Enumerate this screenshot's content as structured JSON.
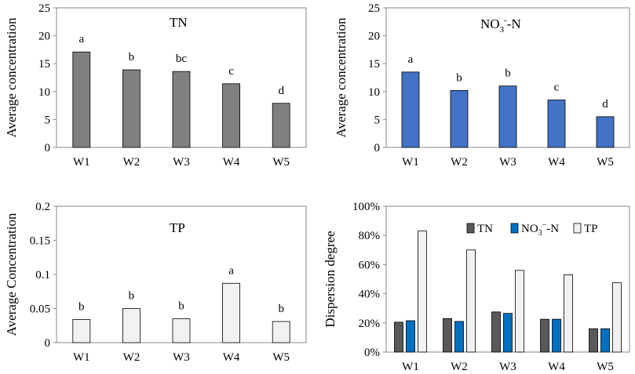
{
  "chart_data": [
    {
      "type": "bar",
      "title": "TN",
      "ylabel": "Average concentration",
      "xlabel": "",
      "categories": [
        "W1",
        "W2",
        "W3",
        "W4",
        "W5"
      ],
      "values": [
        17.1,
        13.9,
        13.6,
        11.4,
        7.9
      ],
      "significance": [
        "a",
        "b",
        "bc",
        "c",
        "d"
      ],
      "ylim": [
        0,
        25
      ],
      "yticks": [
        "0",
        "5",
        "10",
        "15",
        "20",
        "25"
      ],
      "bar_color": "#808080"
    },
    {
      "type": "bar",
      "title": "NO3--N",
      "title_main": "NO",
      "title_sub": "3",
      "title_sup": "-",
      "title_end": "-N",
      "ylabel": "Average concentration",
      "xlabel": "",
      "categories": [
        "W1",
        "W2",
        "W3",
        "W4",
        "W5"
      ],
      "values": [
        13.5,
        10.2,
        11.0,
        8.5,
        5.5
      ],
      "significance": [
        "a",
        "b",
        "b",
        "c",
        "d"
      ],
      "ylim": [
        0,
        25
      ],
      "yticks": [
        "0",
        "5",
        "10",
        "15",
        "20",
        "25"
      ],
      "bar_color": "#4472C4"
    },
    {
      "type": "bar",
      "title": "TP",
      "ylabel": "Average Concentration",
      "xlabel": "",
      "categories": [
        "W1",
        "W2",
        "W3",
        "W4",
        "W5"
      ],
      "values": [
        0.034,
        0.05,
        0.035,
        0.087,
        0.031
      ],
      "significance": [
        "b",
        "b",
        "b",
        "a",
        "b"
      ],
      "ylim": [
        0,
        0.2
      ],
      "yticks": [
        "0",
        "0.05",
        "0.1",
        "0.15",
        "0.2"
      ],
      "bar_color": "#F2F2F2"
    },
    {
      "type": "bar",
      "title": "",
      "ylabel": "Dispersion degree",
      "xlabel": "",
      "categories": [
        "W1",
        "W2",
        "W3",
        "W4",
        "W5"
      ],
      "ylim": [
        0,
        100
      ],
      "yticks": [
        "0%",
        "20%",
        "40%",
        "60%",
        "80%",
        "100%"
      ],
      "legend_position": "top-right",
      "series": [
        {
          "name": "TN",
          "color": "#595959",
          "values": [
            20.5,
            23,
            27.5,
            22.5,
            16
          ]
        },
        {
          "name": "NO3--N",
          "legend_main": "NO",
          "legend_sub": "3",
          "legend_sup": "−",
          "legend_end": "-N",
          "color": "#0070C0",
          "values": [
            21.5,
            21,
            26.5,
            22.5,
            16
          ]
        },
        {
          "name": "TP",
          "color": "#F2F2F2",
          "values": [
            83,
            70,
            56,
            53,
            47.5
          ]
        }
      ]
    }
  ]
}
